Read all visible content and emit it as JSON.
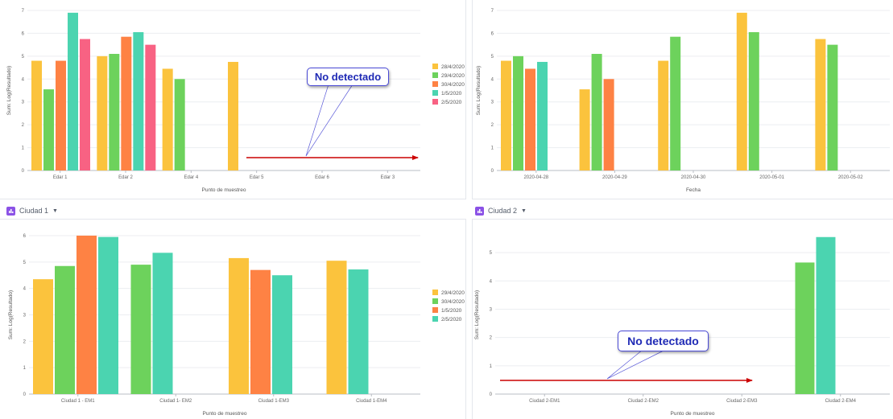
{
  "charts": [
    {
      "id": "c1",
      "panel_title": "",
      "xlabel": "Punto de muestreo",
      "ylabel": "Sum: Log(Resultado)",
      "categories": [
        "Edar 1",
        "Edar 2",
        "Edar 4",
        "Edar 5",
        "Edar 6",
        "Edar 3"
      ],
      "yticks": [
        0,
        1,
        2,
        3,
        4,
        5,
        6,
        7
      ],
      "ylim": [
        0,
        7
      ],
      "series": [
        {
          "name": "28/4/2020",
          "color": "#fbc33d",
          "values": [
            4.8,
            5.0,
            4.45,
            4.75,
            null,
            null
          ]
        },
        {
          "name": "29/4/2020",
          "color": "#6dd25c",
          "values": [
            3.55,
            5.1,
            4.0,
            null,
            null,
            null
          ]
        },
        {
          "name": "30/4/2020",
          "color": "#fe8244",
          "values": [
            4.8,
            5.85,
            null,
            null,
            null,
            null
          ]
        },
        {
          "name": "1/5/2020",
          "color": "#4bd4b0",
          "values": [
            6.9,
            6.05,
            null,
            null,
            null,
            null
          ]
        },
        {
          "name": "2/5/2020",
          "color": "#f86283",
          "values": [
            5.75,
            5.5,
            null,
            null,
            null,
            null
          ]
        }
      ]
    },
    {
      "id": "c2",
      "panel_title": "",
      "xlabel": "Fecha",
      "ylabel": "Sum: Log(Resultado)",
      "categories": [
        "2020-04-28",
        "2020-04-29",
        "2020-04-30",
        "2020-05-01",
        "2020-05-02"
      ],
      "yticks": [
        0,
        1,
        2,
        3,
        4,
        5,
        6,
        7
      ],
      "ylim": [
        0,
        7
      ],
      "series": [
        {
          "name": "",
          "color": "#fbc33d",
          "values": [
            4.8,
            3.55,
            4.8,
            6.9,
            5.75
          ]
        },
        {
          "name": "",
          "color": "#6dd25c",
          "values": [
            5.0,
            5.1,
            5.85,
            6.05,
            5.5
          ]
        },
        {
          "name": "",
          "color": "#fe8244",
          "values": [
            4.45,
            4.0,
            null,
            null,
            null
          ]
        },
        {
          "name": "",
          "color": "#4bd4b0",
          "values": [
            4.75,
            null,
            null,
            null,
            null
          ]
        }
      ]
    },
    {
      "id": "c3",
      "panel_title": "Ciudad 1",
      "xlabel": "Punto de muestreo",
      "ylabel": "Sum: Log(Resultado)",
      "categories": [
        "Ciudad 1 - EM1",
        "Ciudad 1- EM2",
        "Ciudad 1-EM3",
        "Ciudad 1-EM4"
      ],
      "yticks": [
        0,
        1,
        2,
        3,
        4,
        5,
        6
      ],
      "ylim": [
        0,
        6
      ],
      "series": [
        {
          "name": "29/4/2020",
          "color": "#fbc33d",
          "values": [
            4.35,
            null,
            5.15,
            5.05
          ]
        },
        {
          "name": "30/4/2020",
          "color": "#6dd25c",
          "values": [
            4.85,
            4.9,
            null,
            null
          ]
        },
        {
          "name": "1/5/2020",
          "color": "#fe8244",
          "values": [
            6.0,
            null,
            4.7,
            null
          ]
        },
        {
          "name": "2/5/2020",
          "color": "#4bd4b0",
          "values": [
            5.95,
            5.35,
            4.5,
            4.72
          ]
        }
      ]
    },
    {
      "id": "c4",
      "panel_title": "Ciudad 2",
      "xlabel": "Punto de muestreo",
      "ylabel": "Sum: Log(Resultado)",
      "categories": [
        "Ciudad 2-EM1",
        "Ciudad 2-EM2",
        "Ciudad 2-EM3",
        "Ciudad 2-EM4"
      ],
      "yticks": [
        0,
        1,
        2,
        3,
        4,
        5
      ],
      "ylim": [
        0,
        5.6
      ],
      "series": [
        {
          "name": "",
          "color": "#6dd25c",
          "values": [
            null,
            null,
            null,
            4.65
          ]
        },
        {
          "name": "",
          "color": "#4bd4b0",
          "values": [
            null,
            null,
            null,
            5.55
          ]
        }
      ]
    }
  ],
  "callouts": {
    "c1": "No detectado",
    "c4": "No detectado"
  },
  "arrow_color": "#cc0000",
  "icons": {
    "panel_tab": "chart-panel-icon",
    "caret": "caret-down-icon"
  }
}
